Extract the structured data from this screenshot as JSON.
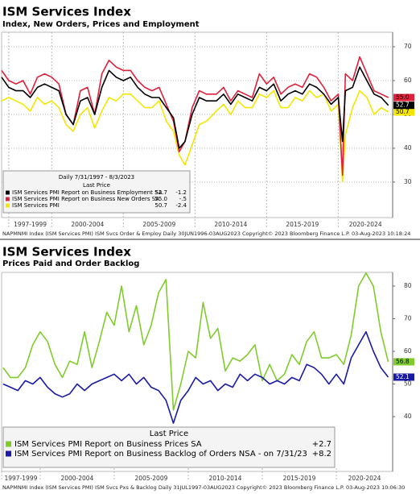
{
  "chart_data": [
    {
      "type": "line",
      "title": "ISM Services Index",
      "subtitle": "Index, New Orders, Prices and Employment",
      "legend_header": "Daily 7/31/1997 - 8/3/2023",
      "legend_column": "Last Price",
      "legend": "lower left",
      "grid": true,
      "footer": "NAPMNMI Index (ISM Services PMI) ISM Svcs Order & Employ  Daily 30JUN1996-03AUG2023 Copyright© 2023 Bloomberg Finance L.P.  03-Aug-2023 10:18:24",
      "xlim": [
        1996.5,
        2023.8
      ],
      "xticks": [
        {
          "value": 1997,
          "label": "1997-1999"
        },
        {
          "value": 2000,
          "label": "2000-2004"
        },
        {
          "value": 2005,
          "label": "2005-2009"
        },
        {
          "value": 2010,
          "label": "2010-2014"
        },
        {
          "value": 2015,
          "label": "2015-2019"
        },
        {
          "value": 2020,
          "label": "2020-2024"
        }
      ],
      "ylim": [
        19.5,
        74.3
      ],
      "yticks": [
        30,
        40,
        50,
        60,
        70
      ],
      "x": [
        1996.5,
        1997,
        1997.5,
        1998,
        1998.5,
        1999,
        1999.5,
        2000,
        2000.5,
        2001,
        2001.5,
        2002,
        2002.5,
        2003,
        2003.5,
        2004,
        2004.5,
        2005,
        2005.5,
        2006,
        2006.5,
        2007,
        2007.5,
        2008,
        2008.5,
        2008.9,
        2009.3,
        2009.8,
        2010.3,
        2010.8,
        2011.5,
        2012,
        2012.5,
        2013,
        2013.5,
        2014,
        2014.5,
        2015,
        2015.5,
        2016,
        2016.5,
        2017,
        2017.5,
        2018,
        2018.5,
        2019,
        2019.5,
        2020,
        2020.3,
        2020.5,
        2021,
        2021.5,
        2022,
        2022.5,
        2023,
        2023.5
      ],
      "series": [
        {
          "name": "ISM Services PMI",
          "color": "#f5e600",
          "last_price": "50.7",
          "change": "-2.4",
          "legend_order": 2,
          "values": [
            54,
            55,
            54,
            53,
            51,
            55,
            53,
            54,
            52,
            47,
            45,
            50,
            52,
            46,
            51,
            55,
            54,
            56,
            56,
            54,
            52,
            52,
            54,
            48,
            45,
            38,
            35,
            41,
            47,
            48,
            51,
            53,
            50,
            54,
            52,
            52,
            56,
            55,
            57,
            52,
            52,
            55,
            54,
            57,
            55,
            56,
            51,
            53,
            30,
            44,
            52,
            57,
            55,
            50,
            52,
            50.7
          ]
        },
        {
          "name": "ISM Services PMI Report on Business New Orders SA",
          "color": "#e0203a",
          "last_price": "55.0",
          "change": "-.5",
          "legend_order": 1,
          "values": [
            63,
            60,
            59,
            60,
            56,
            61,
            62,
            61,
            59,
            50,
            47,
            57,
            58,
            50,
            62,
            66,
            64,
            63,
            63,
            60,
            58,
            57,
            58,
            53,
            48,
            39,
            42,
            52,
            57,
            56,
            56,
            58,
            54,
            57,
            56,
            55,
            62,
            59,
            61,
            56,
            58,
            59,
            58,
            62,
            61,
            58,
            54,
            56,
            32,
            62,
            60,
            67,
            62,
            57,
            56,
            55.0
          ]
        },
        {
          "name": "ISM Services PMI Report on Business Employment SA",
          "color": "#000000",
          "last_price": "52.7",
          "change": "-1.2",
          "legend_order": 0,
          "values": [
            61,
            58,
            57,
            57,
            55,
            58,
            59,
            58,
            57,
            50,
            47,
            54,
            55,
            50,
            58,
            63,
            61,
            60,
            61,
            58,
            56,
            55,
            55,
            52,
            49,
            40,
            42,
            50,
            55,
            54,
            54,
            56,
            53,
            56,
            55,
            54,
            58,
            57,
            59,
            54,
            56,
            57,
            56,
            59,
            58,
            56,
            53,
            55,
            42,
            57,
            58,
            64,
            60,
            56,
            55,
            52.7
          ]
        }
      ]
    },
    {
      "type": "line",
      "title": "ISM Services Index",
      "subtitle": "Prices Paid and Order Backlog",
      "legend_column": "Last Price",
      "legend": "lower left",
      "grid": false,
      "footer": "NAPMNMI Index (ISM Services PMI) ISM Svcs Pxs & Backlog  Daily 31JUL1997-03AUG2023          Copyright© 2023 Bloomberg Finance L.P.      03-Aug-2023 10:06:30",
      "xlim": [
        1997.4,
        2023.8
      ],
      "xticks": [
        {
          "value": 1997.4,
          "label": "1997-1999"
        },
        {
          "value": 2000,
          "label": "2000-2004"
        },
        {
          "value": 2005,
          "label": "2005-2009"
        },
        {
          "value": 2010,
          "label": "2010-2014"
        },
        {
          "value": 2015,
          "label": "2015-2019"
        },
        {
          "value": 2020,
          "label": "2020-2024"
        }
      ],
      "ylim": [
        23.2,
        84.2
      ],
      "yticks": [
        40,
        50,
        60,
        70,
        80
      ],
      "x": [
        1997.5,
        1998,
        1998.5,
        1999,
        1999.5,
        2000,
        2000.5,
        2001,
        2001.5,
        2002,
        2002.5,
        2003,
        2003.5,
        2004,
        2004.5,
        2005,
        2005.5,
        2006,
        2006.5,
        2007,
        2007.5,
        2008,
        2008.5,
        2009,
        2009.5,
        2010,
        2010.5,
        2011,
        2011.5,
        2012,
        2012.5,
        2013,
        2013.5,
        2014,
        2014.5,
        2015,
        2015.5,
        2016,
        2016.5,
        2017,
        2017.5,
        2018,
        2018.5,
        2019,
        2019.5,
        2020,
        2020.5,
        2021,
        2021.5,
        2022,
        2022.5,
        2023,
        2023.5
      ],
      "series": [
        {
          "name": "ISM Services PMI Report on Business Prices SA",
          "color": "#7fcc2a",
          "last_price": "56.8",
          "change": "+2.7",
          "legend_order": 0,
          "values": [
            55,
            52,
            52,
            55,
            62,
            66,
            63,
            56,
            52,
            57,
            56,
            66,
            55,
            63,
            72,
            68,
            80,
            66,
            74,
            62,
            68,
            78,
            82,
            42,
            50,
            60,
            58,
            75,
            64,
            67,
            54,
            58,
            57,
            59,
            62,
            51,
            56,
            51,
            53,
            59,
            56,
            63,
            66,
            58,
            58,
            59,
            56,
            65,
            80,
            84,
            80,
            66,
            56.8
          ]
        },
        {
          "name": "ISM Services PMI Report on Business Backlog of Orders NSA -  on 7/31/23",
          "color": "#1a1aa8",
          "last_price": "52.1",
          "change": "+8.2",
          "legend_order": 1,
          "values": [
            50,
            49,
            48,
            51,
            50,
            52,
            49,
            47,
            46,
            47,
            50,
            48,
            50,
            51,
            52,
            53,
            51,
            53,
            50,
            52,
            49,
            48,
            45,
            38,
            45,
            48,
            52,
            50,
            51,
            48,
            50,
            49,
            53,
            51,
            53,
            52,
            50,
            51,
            50,
            52,
            51,
            56,
            55,
            53,
            50,
            53,
            50,
            58,
            62,
            66,
            60,
            55,
            52.1
          ]
        }
      ]
    }
  ]
}
